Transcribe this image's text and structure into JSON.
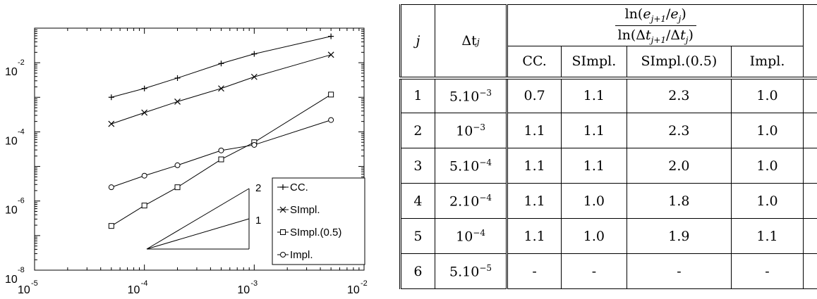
{
  "chart_data": {
    "type": "line",
    "log_x": true,
    "log_y": true,
    "xlim": [
      1e-05,
      0.01
    ],
    "ylim": [
      1e-08,
      0.1
    ],
    "xticks": [
      {
        "base": "10",
        "exp": "-5"
      },
      {
        "base": "10",
        "exp": "-4"
      },
      {
        "base": "10",
        "exp": "-3"
      },
      {
        "base": "10",
        "exp": "-2"
      }
    ],
    "yticks": [
      {
        "base": "10",
        "exp": "-8"
      },
      {
        "base": "10",
        "exp": "-6"
      },
      {
        "base": "10",
        "exp": "-4"
      },
      {
        "base": "10",
        "exp": "-2"
      }
    ],
    "x": [
      5e-05,
      0.0001,
      0.0002,
      0.0005,
      0.001,
      0.005
    ],
    "series": [
      {
        "name": "CC.",
        "marker": "plus",
        "values": [
          0.001,
          0.0018,
          0.0036,
          0.0095,
          0.018,
          0.058
        ]
      },
      {
        "name": "SImpl.",
        "marker": "cross",
        "values": [
          0.00017,
          0.00036,
          0.00075,
          0.0018,
          0.0039,
          0.017
        ]
      },
      {
        "name": "SImpl.(0.5)",
        "marker": "square",
        "values": [
          1.9e-07,
          7.4e-07,
          2.5e-06,
          1.6e-05,
          5e-05,
          0.0012
        ]
      },
      {
        "name": "Impl.",
        "marker": "circle",
        "values": [
          2.5e-06,
          5.4e-06,
          1.08e-05,
          2.9e-05,
          4.2e-05,
          0.00022
        ]
      }
    ],
    "slope_triangle": {
      "slope1_label": "1",
      "slope2_label": "2"
    },
    "legend_position": "bottom-right",
    "grid": false
  },
  "table": {
    "col_j": "j",
    "col_dt": "Δt",
    "col_dt_sub": "j",
    "ratio_numerator": "ln(e_{j+1}/e_j)",
    "ratio_denominator": "ln(Δt_{j+1}/Δt_j)",
    "methods": [
      "CC.",
      "SImpl.",
      "SImpl.(0.5)",
      "Impl."
    ],
    "rows": [
      {
        "j": "1",
        "dt_base": "5.10",
        "dt_exp": "−3",
        "values": [
          "0.7",
          "1.1",
          "2.3",
          "1.0"
        ]
      },
      {
        "j": "2",
        "dt_base": "10",
        "dt_exp": "−3",
        "values": [
          "1.1",
          "1.1",
          "2.3",
          "1.0"
        ]
      },
      {
        "j": "3",
        "dt_base": "5.10",
        "dt_exp": "−4",
        "values": [
          "1.1",
          "1.1",
          "2.0",
          "1.0"
        ]
      },
      {
        "j": "4",
        "dt_base": "2.10",
        "dt_exp": "−4",
        "values": [
          "1.1",
          "1.0",
          "1.8",
          "1.0"
        ]
      },
      {
        "j": "5",
        "dt_base": "10",
        "dt_exp": "−4",
        "values": [
          "1.1",
          "1.0",
          "1.9",
          "1.1"
        ]
      },
      {
        "j": "6",
        "dt_base": "5.10",
        "dt_exp": "−5",
        "values": [
          "-",
          "-",
          "-",
          "-"
        ]
      }
    ]
  }
}
